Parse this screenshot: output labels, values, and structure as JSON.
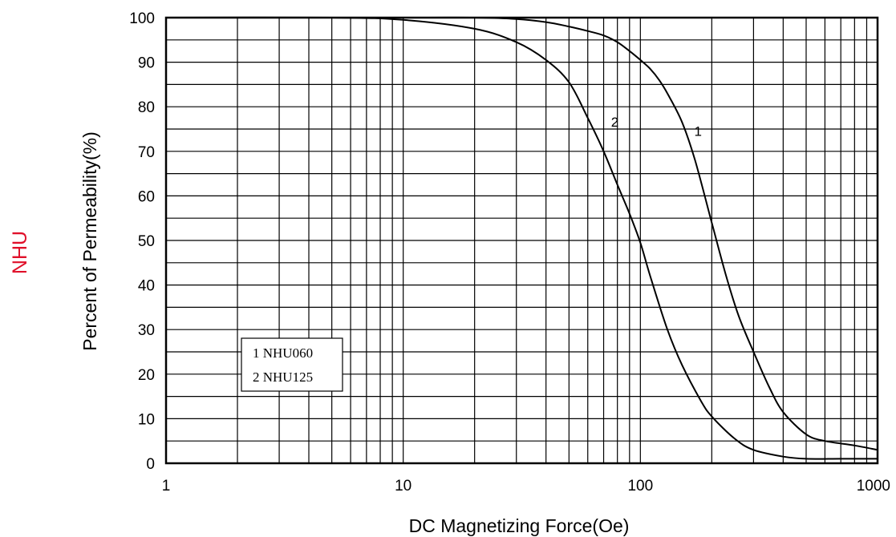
{
  "side_title": "NHU",
  "colors": {
    "side_title": "#e0102a",
    "grid": "#000000",
    "curve": "#000000"
  },
  "chart_data": {
    "type": "line",
    "xlabel": "DC Magnetizing Force(Oe)",
    "ylabel": "Percent of Permeability(%)",
    "x_scale": "log",
    "xlim": [
      1,
      1000
    ],
    "ylim": [
      0,
      100
    ],
    "x_ticks": [
      1,
      10,
      100,
      1000
    ],
    "x_tick_labels": [
      "1",
      "10",
      "100",
      "1000"
    ],
    "y_ticks": [
      0,
      10,
      20,
      30,
      40,
      50,
      60,
      70,
      80,
      90,
      100
    ],
    "y_tick_labels": [
      "0",
      "10",
      "20",
      "30",
      "40",
      "50",
      "60",
      "70",
      "80",
      "90",
      "100"
    ],
    "grid": true,
    "legend": {
      "position": "bottom-left",
      "entries": [
        "1 NHU060",
        "2 NHU125"
      ]
    },
    "series": [
      {
        "label": "1",
        "x": [
          1,
          10,
          20,
          30,
          40,
          50,
          60,
          70,
          80,
          90,
          100,
          110,
          120,
          130,
          150,
          170,
          200,
          230,
          260,
          300,
          350,
          400,
          500,
          600,
          800,
          1000
        ],
        "y": [
          100,
          100,
          100,
          99.7,
          99,
          98,
          97,
          96,
          94.5,
          92.5,
          90.5,
          88.5,
          86,
          83,
          76.5,
          68,
          54,
          42,
          33,
          25,
          17,
          11.5,
          6.5,
          5,
          4,
          3
        ]
      },
      {
        "label": "2",
        "x": [
          1,
          5,
          10,
          20,
          30,
          40,
          50,
          60,
          70,
          80,
          90,
          100,
          110,
          130,
          150,
          180,
          200,
          250,
          300,
          400,
          500,
          700,
          1000
        ],
        "y": [
          100,
          100,
          99.5,
          97.5,
          94.5,
          90.5,
          85.5,
          77.5,
          70,
          62.5,
          56,
          49.5,
          42,
          30,
          22,
          14,
          10.5,
          5.5,
          3,
          1.5,
          1,
          1,
          1
        ]
      }
    ]
  }
}
